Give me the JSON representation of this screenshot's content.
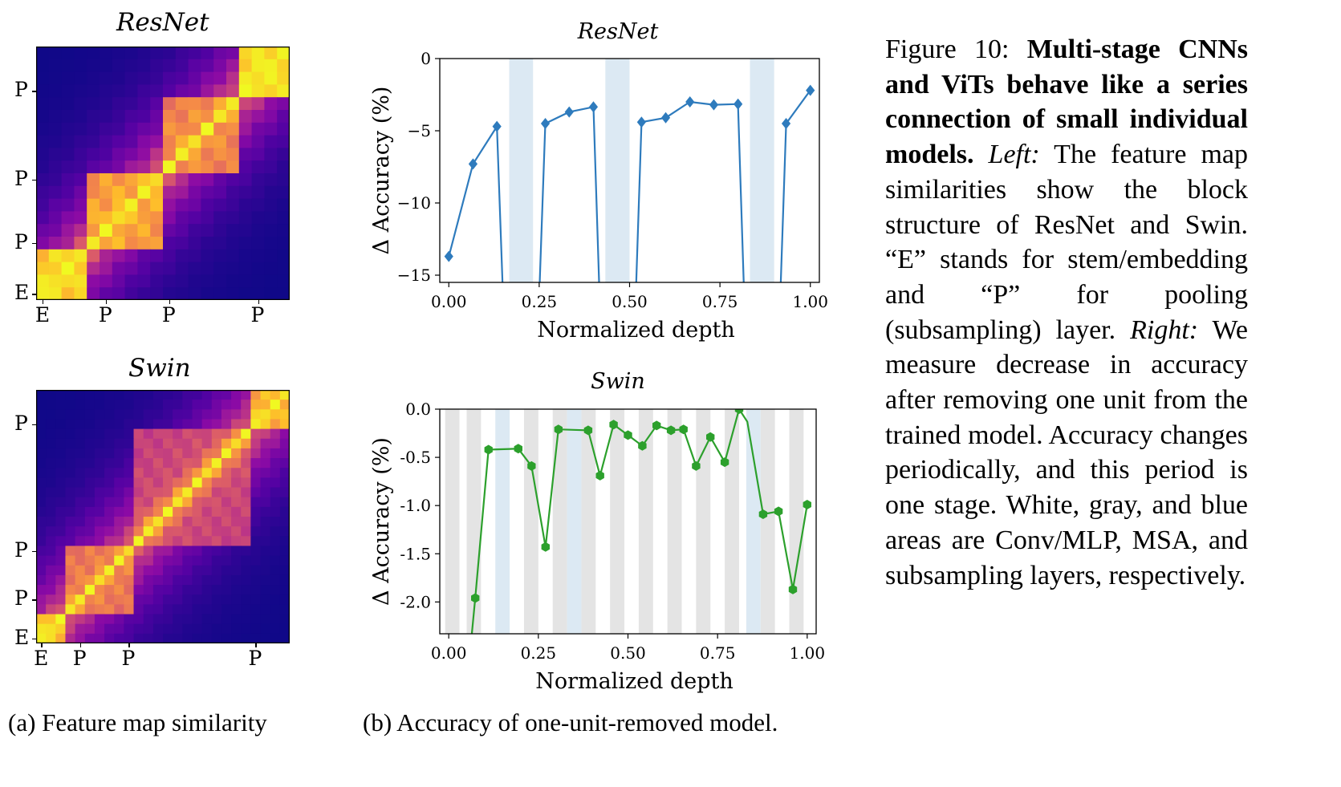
{
  "heatmaps": [
    {
      "id": "resnet",
      "title": "ResNet",
      "n": 20,
      "y_labels": [
        {
          "text": "P",
          "index": 3
        },
        {
          "text": "P",
          "index": 10
        },
        {
          "text": "P",
          "index": 15
        },
        {
          "text": "E",
          "index": 19
        }
      ],
      "x_labels": [
        {
          "text": "E",
          "index": 0
        },
        {
          "text": "P",
          "index": 5
        },
        {
          "text": "P",
          "index": 10
        },
        {
          "text": "P",
          "index": 17
        }
      ],
      "stage_bounds": [
        [
          0,
          4
        ],
        [
          4,
          10
        ],
        [
          10,
          16
        ],
        [
          16,
          20
        ]
      ],
      "stage_strength": [
        0.95,
        0.82,
        0.75,
        1.0
      ]
    },
    {
      "id": "swin",
      "title": "Swin",
      "n": 26,
      "y_labels": [
        {
          "text": "P",
          "index": 3
        },
        {
          "text": "P",
          "index": 16
        },
        {
          "text": "P",
          "index": 21
        },
        {
          "text": "E",
          "index": 25
        }
      ],
      "x_labels": [
        {
          "text": "E",
          "index": 0
        },
        {
          "text": "P",
          "index": 4
        },
        {
          "text": "P",
          "index": 9
        },
        {
          "text": "P",
          "index": 22
        }
      ],
      "stage_bounds": [
        [
          0,
          3
        ],
        [
          3,
          10
        ],
        [
          10,
          22
        ],
        [
          22,
          26
        ]
      ],
      "stage_strength": [
        0.9,
        0.7,
        0.55,
        0.85
      ]
    }
  ],
  "chart_data": [
    {
      "type": "line",
      "title": "ResNet",
      "xlabel": "Normalized depth",
      "ylabel": "Δ Accuracy (%)",
      "xlim": [
        -0.025,
        1.025
      ],
      "ylim": [
        -15.5,
        0
      ],
      "xticks": [
        "0.00",
        "0.25",
        "0.50",
        "0.75",
        "1.00"
      ],
      "xtick_values": [
        0,
        0.25,
        0.5,
        0.75,
        1.0
      ],
      "yticks": [
        "0",
        "−5",
        "−10",
        "−15"
      ],
      "ytick_values": [
        0,
        -5,
        -10,
        -15
      ],
      "color": "#2e7bbd",
      "band_color": "#dce9f3",
      "blue_bands": [
        [
          0.167,
          0.233
        ],
        [
          0.433,
          0.5
        ],
        [
          0.833,
          0.9
        ]
      ],
      "series": [
        {
          "x": [
            0.0,
            0.067,
            0.133,
            0.15
          ],
          "y": [
            -13.7,
            -7.3,
            -4.7,
            -16.5
          ]
        },
        {
          "x": [
            0.25,
            0.267,
            0.333,
            0.4,
            0.417
          ],
          "y": [
            -16.5,
            -4.5,
            -3.7,
            -3.35,
            -16.5
          ]
        },
        {
          "x": [
            0.517,
            0.533,
            0.6,
            0.667,
            0.733,
            0.8,
            0.817
          ],
          "y": [
            -16.5,
            -4.4,
            -4.1,
            -3.0,
            -3.2,
            -3.15,
            -16.5
          ]
        },
        {
          "x": [
            0.917,
            0.933,
            1.0
          ],
          "y": [
            -16.5,
            -4.5,
            -2.2
          ]
        }
      ],
      "markers": {
        "x": [
          0.0,
          0.067,
          0.133,
          0.267,
          0.333,
          0.4,
          0.533,
          0.6,
          0.667,
          0.733,
          0.8,
          0.933,
          1.0
        ],
        "y": [
          -13.7,
          -7.3,
          -4.7,
          -4.5,
          -3.7,
          -3.35,
          -4.4,
          -4.1,
          -3.0,
          -3.2,
          -3.15,
          -4.5,
          -2.2
        ]
      }
    },
    {
      "type": "line",
      "title": "Swin",
      "xlabel": "Normalized depth",
      "ylabel": "Δ Accuracy (%)",
      "xlim": [
        -0.025,
        1.025
      ],
      "ylim": [
        -2.33,
        0
      ],
      "xticks": [
        "0.00",
        "0.25",
        "0.50",
        "0.75",
        "1.00"
      ],
      "xtick_values": [
        0,
        0.25,
        0.5,
        0.75,
        1.0
      ],
      "yticks": [
        "0.0",
        "-0.5",
        "-1.0",
        "-1.5",
        "-2.0"
      ],
      "ytick_values": [
        0,
        -0.5,
        -1.0,
        -1.5,
        -2.0
      ],
      "color": "#2ca02c",
      "band_color": "#dce9f3",
      "gray_color": "#e4e4e4",
      "blue_bands": [
        [
          0.13,
          0.17
        ],
        [
          0.33,
          0.37
        ],
        [
          0.83,
          0.87
        ]
      ],
      "gray_bands": [
        [
          -0.01,
          0.03
        ],
        [
          0.05,
          0.09
        ],
        [
          0.21,
          0.25
        ],
        [
          0.29,
          0.33
        ],
        [
          0.37,
          0.41
        ],
        [
          0.45,
          0.49
        ],
        [
          0.53,
          0.57
        ],
        [
          0.61,
          0.65
        ],
        [
          0.69,
          0.73
        ],
        [
          0.77,
          0.81
        ],
        [
          0.87,
          0.91
        ],
        [
          0.95,
          0.99
        ]
      ],
      "series": [
        {
          "x": [
            0.06,
            0.074,
            0.111,
            0.194,
            0.231,
            0.27,
            0.306,
            0.389,
            0.422,
            0.46,
            0.5,
            0.54,
            0.58,
            0.62,
            0.655,
            0.69,
            0.73,
            0.77,
            0.81,
            0.833,
            0.877,
            0.92,
            0.96,
            1.0
          ],
          "y": [
            -2.5,
            -1.96,
            -0.42,
            -0.41,
            -0.59,
            -1.43,
            -0.21,
            -0.22,
            -0.69,
            -0.16,
            -0.27,
            -0.38,
            -0.17,
            -0.22,
            -0.21,
            -0.59,
            -0.29,
            -0.55,
            0.0,
            -0.13,
            -1.09,
            -1.06,
            -1.87,
            -0.99
          ]
        }
      ],
      "markers": {
        "x": [
          0.074,
          0.111,
          0.194,
          0.231,
          0.27,
          0.306,
          0.389,
          0.422,
          0.46,
          0.5,
          0.54,
          0.58,
          0.62,
          0.655,
          0.69,
          0.73,
          0.77,
          0.81,
          0.877,
          0.92,
          0.96,
          1.0
        ],
        "y": [
          -1.96,
          -0.42,
          -0.41,
          -0.59,
          -1.43,
          -0.21,
          -0.22,
          -0.69,
          -0.16,
          -0.27,
          -0.38,
          -0.17,
          -0.22,
          -0.21,
          -0.59,
          -0.29,
          -0.55,
          0.0,
          -1.09,
          -1.06,
          -1.87,
          -0.99
        ]
      }
    }
  ],
  "subcaptions": {
    "a": "(a) Feature map similarity",
    "b": "(b) Accuracy of one-unit-removed model."
  },
  "caption": {
    "prefix": "Figure 10:",
    "bold": "Multi-stage CNNs and ViTs behave like a series connection of small individual models.",
    "left_label": "Left:",
    "left_text": "The feature map similarities show the block structure of ResNet and Swin. “E” stands for stem/embedding and “P” for pooling (subsampling) layer.",
    "right_label": "Right:",
    "right_text": "We measure decrease in accuracy after removing one unit from the trained model. Accuracy changes periodically, and this period is one stage. White, gray, and blue areas are Conv/MLP, MSA, and subsampling layers, respectively."
  }
}
